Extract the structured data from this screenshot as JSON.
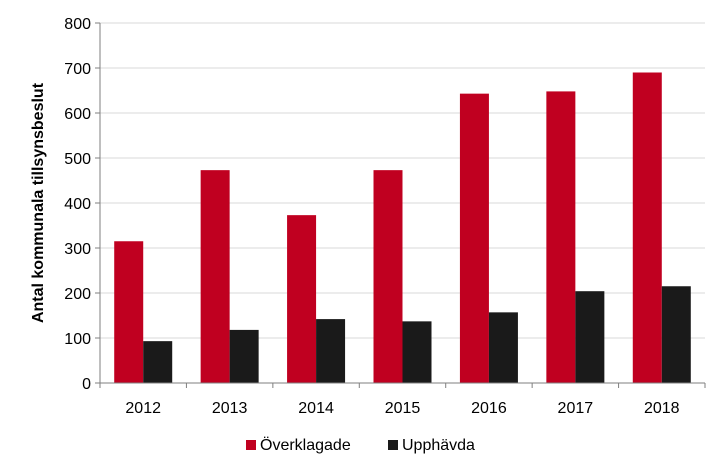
{
  "chart_data": {
    "type": "bar",
    "categories": [
      "2012",
      "2013",
      "2014",
      "2015",
      "2016",
      "2017",
      "2018"
    ],
    "series": [
      {
        "name": "Överklagade",
        "color": "#c00020",
        "values": [
          315,
          473,
          373,
          473,
          643,
          648,
          690
        ]
      },
      {
        "name": "Upphävda",
        "color": "#1a1a1a",
        "values": [
          93,
          118,
          142,
          137,
          157,
          204,
          215
        ]
      }
    ],
    "title": "",
    "xlabel": "",
    "ylabel": "Antal kommunala tillsynsbeslut",
    "ylim": [
      0,
      800
    ],
    "yticks": [
      "0",
      "100",
      "200",
      "300",
      "400",
      "500",
      "600",
      "700",
      "800"
    ],
    "grid": true,
    "legend_position": "bottom"
  }
}
